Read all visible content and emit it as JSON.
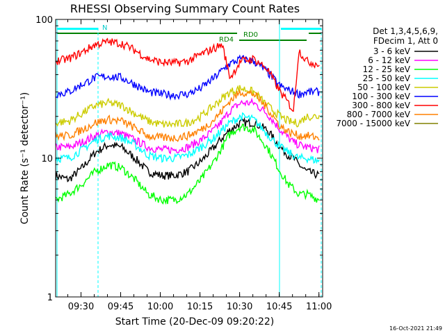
{
  "chart_data": {
    "type": "line",
    "title": "RHESSI Observing Summary Count Rates",
    "xlabel": "Start Time (20-Dec-09 09:20:22)",
    "ylabel": "Count Rate (s⁻¹ detector⁻¹)",
    "y_scale": "log",
    "ylim": [
      1,
      100
    ],
    "xlim_minutes_after_start": [
      0,
      101
    ],
    "x_ticks": [
      {
        "label": "09:30",
        "minutes": 9.6
      },
      {
        "label": "09:45",
        "minutes": 24.6
      },
      {
        "label": "10:00",
        "minutes": 39.6
      },
      {
        "label": "10:15",
        "minutes": 54.6
      },
      {
        "label": "10:30",
        "minutes": 69.6
      },
      {
        "label": "10:45",
        "minutes": 84.6
      },
      {
        "label": "11:00",
        "minutes": 99.6
      }
    ],
    "y_ticks": [
      {
        "label": "1",
        "value": 1
      },
      {
        "label": "10",
        "value": 10
      },
      {
        "label": "100",
        "value": 100
      }
    ],
    "legend_header": [
      "Det 1,3,4,5,6,9,",
      "FDecim 1, Att 0"
    ],
    "legend_position": "right",
    "x_minutes": [
      0,
      5,
      10,
      15,
      20,
      25,
      30,
      35,
      40,
      45,
      50,
      55,
      60,
      63,
      66,
      70,
      75,
      80,
      85,
      88,
      90,
      92,
      95,
      100
    ],
    "series": [
      {
        "name": "3 - 6 keV",
        "color": "#000000",
        "values": [
          7.5,
          7.0,
          8.5,
          11.0,
          12.5,
          12.0,
          10.0,
          8.0,
          7.5,
          7.5,
          8.0,
          9.5,
          12.0,
          14.0,
          16.0,
          18.0,
          18.0,
          16.0,
          12.0,
          10.5,
          10.0,
          9.0,
          8.0,
          7.5
        ]
      },
      {
        "name": "6 - 12 keV",
        "color": "#ff00ff",
        "values": [
          12.0,
          12.0,
          13.0,
          14.5,
          15.5,
          15.0,
          13.5,
          12.0,
          11.5,
          11.5,
          12.0,
          13.5,
          16.0,
          18.5,
          22.0,
          25.0,
          25.0,
          21.0,
          16.0,
          14.0,
          13.0,
          12.5,
          12.0,
          11.5
        ]
      },
      {
        "name": "12 - 25 keV",
        "color": "#00ff00",
        "values": [
          5.0,
          5.5,
          6.5,
          8.0,
          9.0,
          8.5,
          7.0,
          5.5,
          5.0,
          5.0,
          5.5,
          7.0,
          9.5,
          12.0,
          15.0,
          17.0,
          16.0,
          12.0,
          8.0,
          6.5,
          6.0,
          5.5,
          5.5,
          5.0
        ]
      },
      {
        "name": "25 - 50 keV",
        "color": "#00ffff",
        "values": [
          10.0,
          10.0,
          11.5,
          13.5,
          14.5,
          14.0,
          12.5,
          10.5,
          10.0,
          10.0,
          10.5,
          12.0,
          14.0,
          16.0,
          18.0,
          20.0,
          19.0,
          15.0,
          12.0,
          11.0,
          10.5,
          10.0,
          10.0,
          9.5
        ]
      },
      {
        "name": "50 - 100 keV",
        "color": "#cccc00",
        "values": [
          18.0,
          18.5,
          21.0,
          24.0,
          25.0,
          24.0,
          21.0,
          18.5,
          17.5,
          17.5,
          18.0,
          20.0,
          24.0,
          27.0,
          30.0,
          32.0,
          30.0,
          24.0,
          20.0,
          18.5,
          18.0,
          18.0,
          20.0,
          20.0
        ]
      },
      {
        "name": "100 - 300 keV",
        "color": "#0000ff",
        "values": [
          29.0,
          30.0,
          34.0,
          38.0,
          39.0,
          38.0,
          34.0,
          30.0,
          29.0,
          28.5,
          29.0,
          32.0,
          38.0,
          43.0,
          48.0,
          52.0,
          50.0,
          42.0,
          33.0,
          31.0,
          30.0,
          29.0,
          30.0,
          30.0
        ]
      },
      {
        "name": "300 - 800 keV",
        "color": "#ff0000",
        "values": [
          50.0,
          52.0,
          58.0,
          66.0,
          69.0,
          67.0,
          60.0,
          52.0,
          49.0,
          48.5,
          50.0,
          56.0,
          62.0,
          66.0,
          38.0,
          50.0,
          52.0,
          44.0,
          30.0,
          25.0,
          22.0,
          60.0,
          50.0,
          47.0
        ]
      },
      {
        "name": "800 - 7000 keV",
        "color": "#ff8000",
        "values": [
          14.5,
          14.5,
          16.0,
          18.0,
          19.0,
          18.5,
          16.5,
          14.5,
          14.0,
          14.0,
          14.5,
          16.0,
          19.0,
          22.0,
          26.0,
          30.0,
          29.0,
          23.0,
          17.0,
          15.5,
          15.0,
          14.5,
          14.5,
          14.0
        ]
      },
      {
        "name": "7000 - 15000 keV",
        "color": "#808000",
        "values": []
      }
    ],
    "annotations": [
      {
        "label": "N",
        "color": "#00cccc"
      },
      {
        "label": "RD4",
        "color": "#008000"
      },
      {
        "label": "RD0",
        "color": "#008000"
      }
    ],
    "timestamp": "16-Oct-2021 21:49"
  }
}
